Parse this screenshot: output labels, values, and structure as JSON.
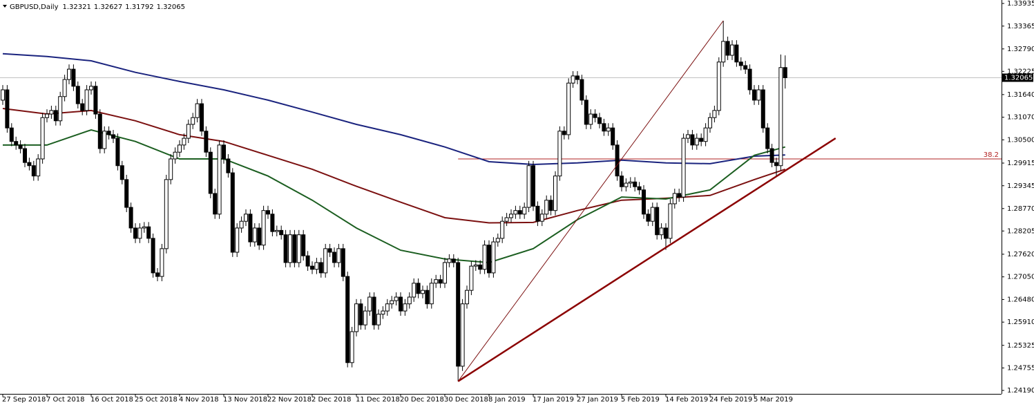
{
  "chart_data": {
    "type": "candlestick",
    "title": "GBPUSD,Daily",
    "header_values": [
      1.32321,
      1.32627,
      1.31792,
      1.32065
    ],
    "current_price": 1.32065,
    "categories": [
      "27 Sep 2018",
      null,
      null,
      null,
      null,
      null,
      null,
      null,
      null,
      null,
      "7 Oct 2018",
      null,
      null,
      null,
      null,
      null,
      null,
      null,
      null,
      null,
      "16 Oct 2018",
      null,
      null,
      null,
      null,
      null,
      null,
      null,
      null,
      null,
      "25 Oct 2018",
      null,
      null,
      null,
      null,
      null,
      null,
      null,
      null,
      null,
      "4 Nov 2018",
      null,
      null,
      null,
      null,
      null,
      null,
      null,
      null,
      null,
      "13 Nov 2018",
      null,
      null,
      null,
      null,
      null,
      null,
      null,
      null,
      null,
      "22 Nov 2018",
      null,
      null,
      null,
      null,
      null,
      null,
      null,
      null,
      null,
      "2 Dec 2018",
      null,
      null,
      null,
      null,
      null,
      null,
      null,
      null,
      null,
      "11 Dec 2018",
      null,
      null,
      null,
      null,
      null,
      null,
      null,
      null,
      null,
      "20 Dec 2018",
      null,
      null,
      null,
      null,
      null,
      null,
      null,
      null,
      null,
      "30 Dec 2018",
      null,
      null,
      null,
      null,
      null,
      null,
      null,
      null,
      null,
      "8 Jan 2019",
      null,
      null,
      null,
      null,
      null,
      null,
      null,
      null,
      null,
      "17 Jan 2019",
      null,
      null,
      null,
      null,
      null,
      null,
      null,
      null,
      null,
      "27 Jan 2019",
      null,
      null,
      null,
      null,
      null,
      null,
      null,
      null,
      null,
      "5 Feb 2019",
      null,
      null,
      null,
      null,
      null,
      null,
      null,
      null,
      null,
      "14 Feb 2019",
      null,
      null,
      null,
      null,
      null,
      null,
      null,
      null,
      null,
      "24 Feb 2019",
      null,
      null,
      null,
      null,
      null,
      null,
      null,
      null,
      null,
      "5 Mar 2019",
      null,
      null,
      null,
      null,
      null,
      null,
      null
    ],
    "open": [
      1.315,
      1.3176,
      1.308,
      1.3046,
      1.3037,
      1.3028,
      1.2993,
      1.2985,
      1.2959,
      1.3002,
      1.3106,
      1.3115,
      1.3124,
      1.3098,
      1.3159,
      1.3202,
      1.3228,
      1.3185,
      1.3141,
      1.3124,
      1.3176,
      1.3185,
      1.3115,
      1.3028,
      1.3072,
      1.3063,
      1.3054,
      1.2985,
      1.295,
      1.288,
      1.2828,
      1.2802,
      1.2828,
      1.2831,
      1.2802,
      1.2715,
      1.2706,
      1.2776,
      1.295,
      1.3002,
      1.3019,
      1.3037,
      1.3054,
      1.3089,
      1.3106,
      1.3141,
      1.3072,
      1.3019,
      1.2915,
      1.2863,
      1.3037,
      1.3002,
      1.2967,
      1.2767,
      1.2828,
      1.2845,
      1.2863,
      1.2793,
      1.2828,
      1.2785,
      1.2872,
      1.2863,
      1.2819,
      1.2822,
      1.2811,
      1.2741,
      1.2811,
      1.2741,
      1.2811,
      1.2758,
      1.2732,
      1.2724,
      1.2741,
      1.2715,
      1.2776,
      1.2767,
      1.2741,
      1.2776,
      1.2706,
      1.2489,
      1.2567,
      1.2637,
      1.2584,
      1.2619,
      1.2654,
      1.2584,
      1.2611,
      1.2619,
      1.2637,
      1.2645,
      1.2654,
      1.2619,
      1.2637,
      1.2654,
      1.2689,
      1.2663,
      1.2671,
      1.2637,
      1.2689,
      1.2698,
      1.2689,
      1.2741,
      1.275,
      1.2741,
      1.248,
      1.2637,
      1.2671,
      1.2732,
      1.2735,
      1.2724,
      1.2785,
      1.2715,
      1.2793,
      1.2802,
      1.2845,
      1.2854,
      1.2863,
      1.2872,
      1.2863,
      1.288,
      1.2985,
      1.2883,
      1.2845,
      1.2863,
      1.2898,
      1.2872,
      1.2959,
      1.3072,
      1.3063,
      1.3193,
      1.3211,
      1.3202,
      1.315,
      1.3089,
      1.3115,
      1.3106,
      1.3091,
      1.3072,
      1.308,
      1.3037,
      1.2959,
      1.2932,
      1.2941,
      1.2944,
      1.2932,
      1.2924,
      1.2863,
      1.2845,
      1.288,
      1.2811,
      1.2828,
      1.2802,
      1.2889,
      1.2915,
      1.2906,
      1.3054,
      1.3063,
      1.3037,
      1.3054,
      1.3046,
      1.308,
      1.3106,
      1.3124,
      1.3246,
      1.3298,
      1.3263,
      1.3289,
      1.3246,
      1.3237,
      1.3228,
      1.3176,
      1.315,
      1.3176,
      1.308,
      1.3028,
      1.2993,
      1.2985,
      1.32321
    ],
    "close": [
      1.3176,
      1.308,
      1.3046,
      1.3037,
      1.3028,
      1.2993,
      1.2985,
      1.2959,
      1.3002,
      1.3106,
      1.3115,
      1.3124,
      1.3098,
      1.3159,
      1.3202,
      1.3228,
      1.3185,
      1.3141,
      1.3124,
      1.3176,
      1.3185,
      1.3115,
      1.3028,
      1.3072,
      1.3063,
      1.3054,
      1.2985,
      1.295,
      1.288,
      1.2828,
      1.2802,
      1.2828,
      1.2831,
      1.2802,
      1.2715,
      1.2706,
      1.2776,
      1.295,
      1.3002,
      1.3019,
      1.3037,
      1.3054,
      1.3089,
      1.3106,
      1.3141,
      1.3072,
      1.3019,
      1.2915,
      1.2863,
      1.3037,
      1.3002,
      1.2967,
      1.2767,
      1.2828,
      1.2845,
      1.2863,
      1.2793,
      1.2828,
      1.2785,
      1.2872,
      1.2863,
      1.2819,
      1.2822,
      1.2811,
      1.2741,
      1.2811,
      1.2741,
      1.2811,
      1.2758,
      1.2732,
      1.2724,
      1.2741,
      1.2715,
      1.2776,
      1.2767,
      1.2741,
      1.2776,
      1.2706,
      1.2489,
      1.2567,
      1.2637,
      1.2584,
      1.2619,
      1.2654,
      1.2584,
      1.2611,
      1.2619,
      1.2637,
      1.2645,
      1.2654,
      1.2619,
      1.2637,
      1.2654,
      1.2689,
      1.2663,
      1.2671,
      1.2637,
      1.2689,
      1.2698,
      1.2689,
      1.2741,
      1.275,
      1.2741,
      1.248,
      1.2637,
      1.2671,
      1.2732,
      1.2735,
      1.2724,
      1.2785,
      1.2715,
      1.2793,
      1.2802,
      1.2845,
      1.2854,
      1.2863,
      1.2872,
      1.2863,
      1.288,
      1.2985,
      1.2883,
      1.2845,
      1.2863,
      1.2898,
      1.2872,
      1.2959,
      1.3072,
      1.3063,
      1.3193,
      1.3211,
      1.3202,
      1.315,
      1.3089,
      1.3115,
      1.3106,
      1.3091,
      1.3072,
      1.308,
      1.3037,
      1.2959,
      1.2932,
      1.2941,
      1.2944,
      1.2932,
      1.2924,
      1.2863,
      1.2845,
      1.288,
      1.2811,
      1.2828,
      1.2802,
      1.2889,
      1.2915,
      1.2906,
      1.3054,
      1.3063,
      1.3037,
      1.3054,
      1.3046,
      1.308,
      1.3106,
      1.3124,
      1.3246,
      1.3298,
      1.3263,
      1.3289,
      1.3246,
      1.3237,
      1.3228,
      1.3176,
      1.315,
      1.3176,
      1.308,
      1.3028,
      1.2993,
      1.2985,
      1.32321,
      1.32065
    ],
    "high": [
      1.3188,
      1.3188,
      1.3092,
      1.3058,
      1.3049,
      1.304,
      1.3005,
      1.2997,
      1.3014,
      1.3118,
      1.3127,
      1.3136,
      1.3136,
      1.3171,
      1.3214,
      1.324,
      1.324,
      1.3197,
      1.3153,
      1.3188,
      1.3197,
      1.3197,
      1.3127,
      1.3084,
      1.3084,
      1.3075,
      1.3066,
      1.2997,
      1.2962,
      1.2892,
      1.284,
      1.284,
      1.2843,
      1.2843,
      1.2814,
      1.2727,
      1.2788,
      1.2962,
      1.3014,
      1.3031,
      1.3049,
      1.3066,
      1.3101,
      1.3118,
      1.3153,
      1.3153,
      1.3084,
      1.3031,
      1.2927,
      1.3049,
      1.3049,
      1.3014,
      1.2979,
      1.284,
      1.2857,
      1.2875,
      1.2875,
      1.284,
      1.284,
      1.2884,
      1.2884,
      1.2875,
      1.2834,
      1.2834,
      1.2823,
      1.2823,
      1.2823,
      1.2823,
      1.2823,
      1.277,
      1.2744,
      1.2753,
      1.2753,
      1.2788,
      1.2788,
      1.2779,
      1.2788,
      1.2788,
      1.2718,
      1.2579,
      1.2649,
      1.2649,
      1.2631,
      1.2666,
      1.2666,
      1.2623,
      1.2631,
      1.2649,
      1.2657,
      1.2666,
      1.2666,
      1.2649,
      1.2666,
      1.2701,
      1.2701,
      1.2683,
      1.2683,
      1.2701,
      1.271,
      1.271,
      1.2753,
      1.2762,
      1.2762,
      1.2753,
      1.2649,
      1.2683,
      1.2744,
      1.2747,
      1.2747,
      1.2797,
      1.2797,
      1.2805,
      1.2814,
      1.2857,
      1.2866,
      1.2875,
      1.2884,
      1.2884,
      1.2892,
      1.2997,
      1.2997,
      1.2895,
      1.2875,
      1.291,
      1.291,
      1.2971,
      1.3084,
      1.3084,
      1.3205,
      1.3223,
      1.3223,
      1.3214,
      1.3162,
      1.3127,
      1.3127,
      1.3118,
      1.3103,
      1.3092,
      1.3092,
      1.3049,
      1.2971,
      1.2953,
      1.2956,
      1.2956,
      1.2944,
      1.2936,
      1.2875,
      1.2892,
      1.2892,
      1.284,
      1.284,
      1.2901,
      1.2927,
      1.2927,
      1.3066,
      1.3075,
      1.3075,
      1.3066,
      1.3066,
      1.3092,
      1.3118,
      1.3136,
      1.3258,
      1.335,
      1.331,
      1.3301,
      1.3301,
      1.3258,
      1.3249,
      1.324,
      1.3188,
      1.3188,
      1.3188,
      1.3092,
      1.304,
      1.3005,
      1.3265,
      1.32627
    ],
    "low": [
      1.3138,
      1.3068,
      1.3034,
      1.3025,
      1.3016,
      1.2981,
      1.2973,
      1.2947,
      1.2947,
      1.299,
      1.3094,
      1.3103,
      1.3086,
      1.3086,
      1.3147,
      1.319,
      1.3173,
      1.3129,
      1.3112,
      1.3112,
      1.3164,
      1.3103,
      1.3016,
      1.3016,
      1.3051,
      1.3042,
      1.2973,
      1.2938,
      1.2868,
      1.2816,
      1.279,
      1.279,
      1.2816,
      1.279,
      1.2703,
      1.2694,
      1.2694,
      1.2764,
      1.2938,
      1.299,
      1.3007,
      1.3025,
      1.3042,
      1.3077,
      1.3094,
      1.306,
      1.3007,
      1.2903,
      1.2851,
      1.2851,
      1.299,
      1.2955,
      1.2755,
      1.2755,
      1.2816,
      1.2833,
      1.2781,
      1.2781,
      1.2773,
      1.2773,
      1.2851,
      1.2807,
      1.2807,
      1.2799,
      1.2729,
      1.2729,
      1.2729,
      1.2729,
      1.2746,
      1.272,
      1.2712,
      1.2712,
      1.2703,
      1.2703,
      1.2755,
      1.2729,
      1.2729,
      1.2694,
      1.2477,
      1.2477,
      1.2555,
      1.2572,
      1.2572,
      1.2607,
      1.2572,
      1.2572,
      1.2599,
      1.2607,
      1.2625,
      1.2633,
      1.2607,
      1.2607,
      1.2625,
      1.2642,
      1.2651,
      1.2651,
      1.2625,
      1.2625,
      1.2677,
      1.2677,
      1.2677,
      1.2729,
      1.2729,
      1.2442,
      1.2468,
      1.2625,
      1.2659,
      1.272,
      1.2712,
      1.2712,
      1.2703,
      1.2703,
      1.2781,
      1.279,
      1.2833,
      1.2842,
      1.2851,
      1.2851,
      1.2851,
      1.2868,
      1.2871,
      1.2833,
      1.2833,
      1.2851,
      1.286,
      1.286,
      1.2947,
      1.3051,
      1.3051,
      1.3181,
      1.319,
      1.3138,
      1.3077,
      1.3077,
      1.3094,
      1.3079,
      1.306,
      1.306,
      1.3025,
      1.2947,
      1.292,
      1.292,
      1.2929,
      1.292,
      1.2912,
      1.2851,
      1.2833,
      1.2833,
      1.2799,
      1.2799,
      1.2773,
      1.279,
      1.2877,
      1.2894,
      1.2894,
      1.3042,
      1.3025,
      1.3025,
      1.3034,
      1.3034,
      1.3068,
      1.3094,
      1.3112,
      1.3234,
      1.3251,
      1.3251,
      1.3234,
      1.3225,
      1.3216,
      1.3164,
      1.3138,
      1.3138,
      1.3068,
      1.3016,
      1.2981,
      1.296,
      1.2973,
      1.31792
    ],
    "ma_series": [
      {
        "color": "#1a237e",
        "x": [
          0,
          10,
          20,
          30,
          40,
          50,
          60,
          70,
          80,
          90,
          100,
          110,
          120,
          130,
          140,
          150,
          160,
          170,
          177
        ],
        "values": [
          1.3267,
          1.326,
          1.3249,
          1.322,
          1.3197,
          1.3176,
          1.315,
          1.312,
          1.3089,
          1.3063,
          1.3032,
          1.2995,
          1.2988,
          1.2992,
          1.2999,
          1.2992,
          1.299,
          1.3009,
          1.3012
        ]
      },
      {
        "color": "#7b1010",
        "x": [
          0,
          10,
          20,
          30,
          40,
          50,
          60,
          70,
          80,
          90,
          100,
          110,
          120,
          130,
          140,
          150,
          160,
          170,
          177
        ],
        "values": [
          1.3129,
          1.3115,
          1.3124,
          1.3098,
          1.3063,
          1.3046,
          1.3011,
          1.2976,
          1.2933,
          1.2893,
          1.2854,
          1.2841,
          1.2842,
          1.2872,
          1.2898,
          1.2903,
          1.291,
          1.295,
          1.2976
        ]
      },
      {
        "color": "#1b5e20",
        "x": [
          0,
          10,
          20,
          30,
          40,
          50,
          60,
          70,
          80,
          90,
          100,
          110,
          120,
          130,
          140,
          150,
          160,
          170,
          177
        ],
        "values": [
          1.3037,
          1.3037,
          1.3075,
          1.3046,
          1.3002,
          1.3002,
          1.2959,
          1.2898,
          1.2828,
          1.2772,
          1.275,
          1.2741,
          1.2776,
          1.2849,
          1.2906,
          1.2901,
          1.2924,
          1.3011,
          1.3032
        ]
      }
    ],
    "trendlines": [
      {
        "color": "#7b1010",
        "x": [
          103,
          163
        ],
        "values": [
          1.2442,
          1.335
        ]
      },
      {
        "color": "#8b0000",
        "x": [
          103,
          188.4
        ],
        "values": [
          1.2442,
          1.3054
        ]
      }
    ],
    "fib_level": {
      "x_start": 103,
      "value": 1.3002,
      "label": "38.2",
      "color": "#b22222"
    },
    "xlim": [
      -0.625,
      225.94
    ],
    "ylim": [
      1.24103,
      1.34022
    ],
    "yticks": [
      {
        "value": 1.33935,
        "label": "1.33935"
      },
      1.33365,
      {
        "value": 1.3279,
        "label": "1.32790"
      },
      1.32225,
      {
        "value": 1.3164,
        "label": "1.31640"
      },
      {
        "value": 1.3107,
        "label": "1.31070"
      },
      {
        "value": 1.305,
        "label": "1.30500"
      },
      1.29915,
      1.29345,
      {
        "value": 1.2877,
        "label": "1.28770"
      },
      1.28205,
      {
        "value": 1.2762,
        "label": "1.27620"
      },
      {
        "value": 1.2705,
        "label": "1.27050"
      },
      {
        "value": 1.2648,
        "label": "1.26480"
      },
      {
        "value": 1.2591,
        "label": "1.25910"
      },
      1.25325,
      1.24755,
      {
        "value": 1.2419,
        "label": "1.24190"
      }
    ]
  }
}
